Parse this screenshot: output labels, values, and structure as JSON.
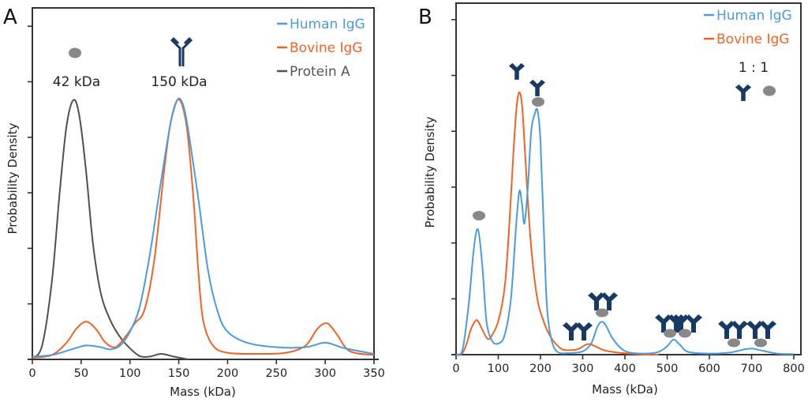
{
  "colors": {
    "human_igg": "#4a9be0",
    "bovine_igg": "#f26322",
    "protein_a": "#505050",
    "antibody_icon": "#163a63",
    "protein_a_icon": "#888888",
    "axis": "#333333"
  },
  "chart_data": [
    {
      "panel": "A",
      "type": "line",
      "title": "A",
      "xlabel": "Mass (kDa)",
      "ylabel": "Probability Density",
      "xlim": [
        0,
        355
      ],
      "ylim": [
        0,
        6.05
      ],
      "xticks": [
        0,
        50,
        100,
        150,
        200,
        250,
        300,
        350
      ],
      "yticks": [
        0,
        1,
        2,
        3,
        4,
        5,
        6
      ],
      "ytick_labels_shown": false,
      "grid": false,
      "legend": {
        "position": "top-right",
        "entries": [
          "Human IgG",
          "Bovine IgG",
          "Protein A"
        ]
      },
      "annotations": [
        {
          "text": "42 kDa",
          "x": 42,
          "icon": "protein-a"
        },
        {
          "text": "150 kDa",
          "x": 150,
          "icon": "antibody"
        }
      ],
      "series": [
        {
          "name": "Human IgG",
          "color_key": "human_igg",
          "x": [
            0,
            20,
            40,
            55,
            70,
            80,
            90,
            100,
            110,
            120,
            130,
            140,
            145,
            150,
            155,
            160,
            170,
            180,
            190,
            200,
            220,
            250,
            280,
            300,
            320,
            350
          ],
          "y": [
            0.05,
            0.08,
            0.18,
            0.25,
            0.22,
            0.18,
            0.25,
            0.5,
            0.95,
            1.85,
            3.0,
            4.1,
            4.5,
            4.7,
            4.55,
            4.1,
            2.9,
            1.6,
            0.85,
            0.5,
            0.3,
            0.22,
            0.22,
            0.3,
            0.2,
            0.1
          ]
        },
        {
          "name": "Bovine IgG",
          "color_key": "bovine_igg",
          "x": [
            0,
            20,
            35,
            45,
            55,
            65,
            75,
            85,
            95,
            105,
            115,
            125,
            135,
            142,
            150,
            158,
            165,
            170,
            175,
            185,
            200,
            230,
            260,
            280,
            292,
            302,
            312,
            325,
            350
          ],
          "y": [
            0.03,
            0.08,
            0.3,
            0.55,
            0.68,
            0.55,
            0.3,
            0.22,
            0.4,
            0.65,
            0.9,
            1.8,
            3.4,
            4.3,
            4.68,
            4.2,
            2.9,
            1.6,
            0.7,
            0.25,
            0.12,
            0.1,
            0.12,
            0.25,
            0.55,
            0.65,
            0.45,
            0.15,
            0.08
          ]
        },
        {
          "name": "Protein A",
          "color_key": "protein_a",
          "x": [
            0,
            10,
            20,
            28,
            35,
            42,
            48,
            55,
            62,
            70,
            80,
            90,
            100,
            110,
            120,
            132,
            145,
            160
          ],
          "y": [
            0.02,
            0.25,
            1.4,
            3.0,
            4.2,
            4.67,
            4.4,
            3.4,
            2.1,
            1.2,
            0.7,
            0.4,
            0.2,
            0.06,
            0.05,
            0.1,
            0.05,
            0.0
          ]
        }
      ]
    },
    {
      "panel": "B",
      "type": "line",
      "title": "B",
      "xlabel": "Mass (kDa)",
      "ylabel": "Probability Density",
      "xlim": [
        0,
        805
      ],
      "ylim": [
        0,
        6.05
      ],
      "xticks": [
        0,
        100,
        200,
        300,
        400,
        500,
        600,
        700,
        800
      ],
      "yticks": [
        0,
        1,
        2,
        3,
        4,
        5,
        6
      ],
      "ytick_labels_shown": false,
      "grid": false,
      "legend": {
        "position": "top-right",
        "entries": [
          "Human IgG",
          "Bovine IgG"
        ]
      },
      "annotations": [
        {
          "text": "1 : 1",
          "position": "top-right",
          "icons": [
            "antibody",
            "protein-a"
          ]
        },
        {
          "x": 52,
          "icons": [
            "protein-a"
          ]
        },
        {
          "x": 150,
          "icons": [
            "antibody"
          ]
        },
        {
          "x": 193,
          "icons": [
            "antibody",
            "protein-a"
          ]
        },
        {
          "x": 290,
          "icons": [
            "antibody-x2"
          ]
        },
        {
          "x": 345,
          "icons": [
            "antibody-x2",
            "protein-a"
          ]
        },
        {
          "x": 520,
          "icons": [
            "antibody-x3",
            "protein-a-x2"
          ]
        },
        {
          "x": 690,
          "icons": [
            "antibody-x4",
            "protein-a-x2"
          ]
        }
      ],
      "series": [
        {
          "name": "Human IgG",
          "color_key": "human_igg",
          "x": [
            0,
            15,
            30,
            42,
            52,
            62,
            72,
            85,
            100,
            115,
            130,
            142,
            150,
            156,
            162,
            170,
            178,
            186,
            193,
            200,
            208,
            215,
            225,
            240,
            270,
            300,
            320,
            335,
            345,
            355,
            370,
            390,
            410,
            450,
            480,
            500,
            515,
            530,
            550,
            600,
            650,
            680,
            700,
            720,
            760,
            800
          ],
          "y": [
            0.0,
            0.08,
            0.9,
            1.9,
            2.24,
            1.6,
            0.6,
            0.25,
            0.2,
            0.35,
            1.0,
            2.3,
            2.93,
            2.7,
            2.35,
            3.0,
            4.0,
            4.3,
            4.37,
            3.8,
            2.2,
            0.9,
            0.3,
            0.05,
            0.03,
            0.06,
            0.2,
            0.5,
            0.59,
            0.52,
            0.3,
            0.12,
            0.04,
            0.02,
            0.05,
            0.15,
            0.27,
            0.18,
            0.05,
            0.02,
            0.04,
            0.09,
            0.11,
            0.08,
            0.02,
            0.01
          ]
        },
        {
          "name": "Bovine IgG",
          "color_key": "bovine_igg",
          "x": [
            0,
            15,
            25,
            35,
            45,
            52,
            62,
            75,
            85,
            100,
            115,
            125,
            135,
            143,
            150,
            157,
            165,
            175,
            185,
            195,
            205,
            215,
            230,
            250,
            270,
            290,
            305,
            315,
            330,
            350,
            380,
            410,
            450,
            480
          ],
          "y": [
            0.0,
            0.03,
            0.2,
            0.45,
            0.6,
            0.6,
            0.45,
            0.28,
            0.35,
            0.6,
            1.2,
            2.2,
            3.5,
            4.4,
            4.7,
            4.4,
            3.4,
            2.2,
            1.4,
            0.9,
            0.65,
            0.45,
            0.25,
            0.1,
            0.08,
            0.1,
            0.17,
            0.19,
            0.15,
            0.08,
            0.04,
            0.02,
            0.0,
            0.0
          ]
        }
      ]
    }
  ]
}
